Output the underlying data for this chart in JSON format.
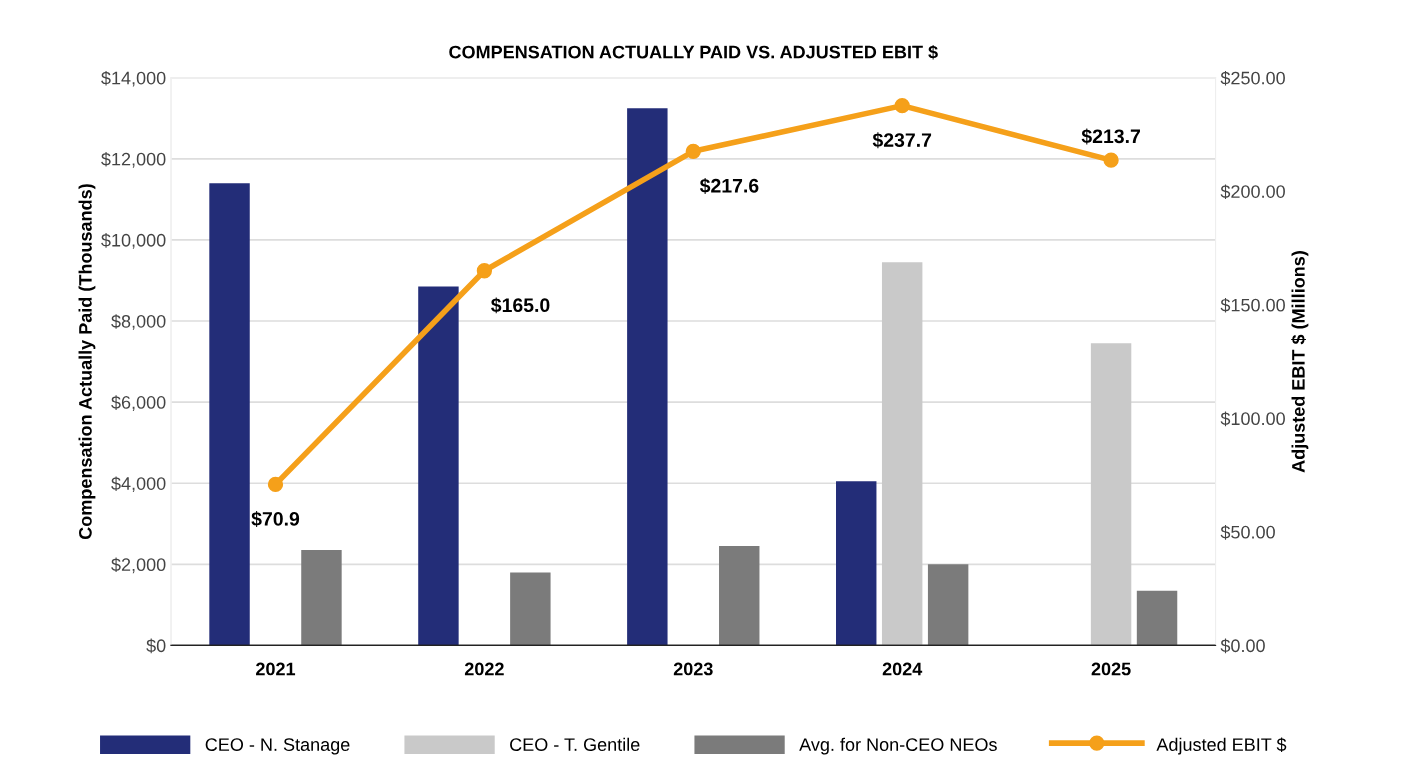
{
  "chart_data": {
    "type": "bar",
    "title": "COMPENSATION ACTUALLY PAID VS. ADJUSTED EBIT $",
    "ylabel": "Compensation Actually Paid (Thousands)",
    "y2label": "Adjusted EBIT $ (Millions)",
    "categories": [
      "2021",
      "2022",
      "2023",
      "2024",
      "2025"
    ],
    "series": [
      {
        "name": "CEO - N. Stanage",
        "color": "#232d78",
        "values": [
          11400,
          8850,
          13250,
          4050,
          null
        ]
      },
      {
        "name": "CEO - T. Gentile",
        "color": "#c9c9c9",
        "values": [
          null,
          null,
          null,
          9450,
          7450
        ]
      },
      {
        "name": "Avg. for Non-CEO NEOs",
        "color": "#7b7b7b",
        "values": [
          2350,
          1800,
          2450,
          2000,
          1350
        ]
      },
      {
        "name": "Adjusted EBIT $",
        "type": "line",
        "axis": "y2",
        "color": "#f5a01a",
        "marker": "circle",
        "values": [
          70.9,
          165.0,
          217.6,
          237.7,
          213.7
        ],
        "value_labels": [
          "$70.9",
          "$165.0",
          "$217.6",
          "$237.7",
          "$213.7"
        ]
      }
    ],
    "ylim": [
      0,
      14000
    ],
    "yticks": [
      {
        "value": 0,
        "label": "$0"
      },
      {
        "value": 2000,
        "label": "$2,000"
      },
      {
        "value": 4000,
        "label": "$4,000"
      },
      {
        "value": 6000,
        "label": "$6,000"
      },
      {
        "value": 8000,
        "label": "$8,000"
      },
      {
        "value": 10000,
        "label": "$10,000"
      },
      {
        "value": 12000,
        "label": "$12,000"
      },
      {
        "value": 14000,
        "label": "$14,000"
      }
    ],
    "y2lim": [
      0,
      250
    ],
    "y2ticks": [
      {
        "value": 0,
        "label": "$0.00"
      },
      {
        "value": 50,
        "label": "$50.00"
      },
      {
        "value": 100,
        "label": "$100.00"
      },
      {
        "value": 150,
        "label": "$150.00"
      },
      {
        "value": 200,
        "label": "$200.00"
      },
      {
        "value": 250,
        "label": "$250.00"
      }
    ],
    "grid": "y",
    "legend": "bottom"
  }
}
